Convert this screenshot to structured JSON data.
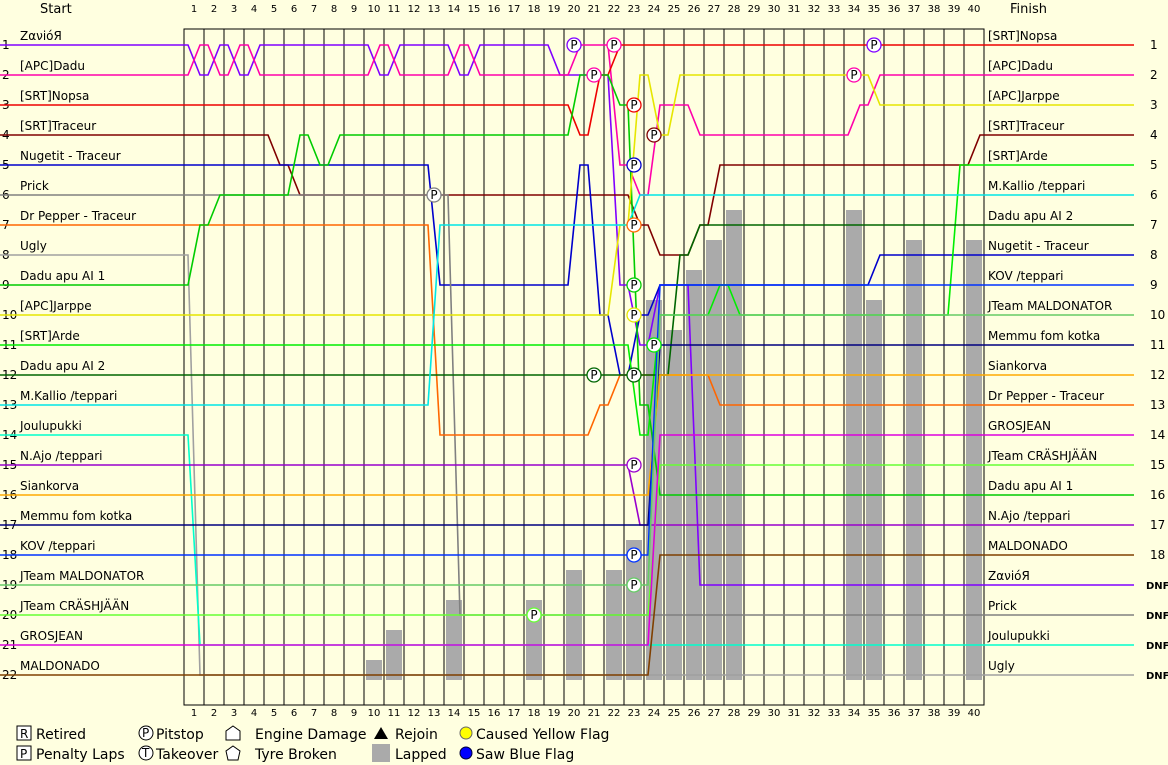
{
  "chart_data": {
    "type": "line",
    "title": "",
    "header": {
      "start_label": "Start",
      "finish_label": "Finish"
    },
    "laps": [
      1,
      2,
      3,
      4,
      5,
      6,
      7,
      8,
      9,
      10,
      11,
      12,
      13,
      14,
      15,
      16,
      17,
      18,
      19,
      20,
      21,
      22,
      23,
      24,
      25,
      26,
      27,
      28,
      29,
      30,
      31,
      32,
      33,
      34,
      35,
      36,
      37,
      38,
      39,
      40
    ],
    "positions": [
      "1",
      "2",
      "3",
      "4",
      "5",
      "6",
      "7",
      "8",
      "9",
      "10",
      "11",
      "12",
      "13",
      "14",
      "15",
      "16",
      "17",
      "18",
      "19",
      "20",
      "21",
      "22"
    ],
    "finish_markers": [
      "1",
      "2",
      "3",
      "4",
      "5",
      "6",
      "7",
      "8",
      "9",
      "10",
      "11",
      "12",
      "13",
      "14",
      "15",
      "16",
      "17",
      "18",
      "DNF",
      "DNF",
      "DNF",
      "DNF"
    ],
    "start_order": [
      "ZανióЯ",
      "[APC]Dadu",
      "[SRT]Nopsa",
      "[SRT]Traceur",
      "Nugetit - Traceur",
      "Prick",
      "Dr Pepper - Traceur",
      "Ugly",
      "Dadu apu AI 1",
      "[APC]Jarppe",
      "[SRT]Arde",
      "Dadu apu AI 2",
      "M.Kallio /teppari",
      "Joulupukki",
      "N.Ajo /teppari",
      "Siankorva",
      "Memmu fom kotka",
      "KOV /teppari",
      "JTeam MALDONATOR",
      "JTeam CRÄSHJÄÄN",
      "GROSJEAN",
      "MALDONADO"
    ],
    "finish_order": [
      "[SRT]Nopsa",
      "[APC]Dadu",
      "[APC]Jarppe",
      "[SRT]Traceur",
      "[SRT]Arde",
      "M.Kallio /teppari",
      "Dadu apu AI 2",
      "Nugetit - Traceur",
      "KOV /teppari",
      "JTeam MALDONATOR",
      "Memmu fom kotka",
      "Siankorva",
      "Dr Pepper - Traceur",
      "GROSJEAN",
      "JTeam CRÄSHJÄÄN",
      "Dadu apu AI 1",
      "N.Ajo /teppari",
      "MALDONADO",
      "ZανióЯ",
      "Prick",
      "Joulupukki",
      "Ugly"
    ],
    "series": [
      {
        "name": "ZανióЯ",
        "color": "#8000ff",
        "pos": [
          1,
          2,
          1,
          2,
          1,
          1,
          1,
          1,
          1,
          1,
          2,
          1,
          1,
          1,
          2,
          1,
          1,
          1,
          1,
          2,
          2,
          2,
          9,
          11,
          9,
          9,
          19,
          19,
          19,
          19,
          19,
          19,
          19,
          19,
          19,
          19,
          19,
          19,
          19,
          19,
          19
        ]
      },
      {
        "name": "[APC]Dadu",
        "color": "#ff00aa",
        "pos": [
          2,
          1,
          2,
          1,
          2,
          2,
          2,
          2,
          2,
          2,
          1,
          2,
          2,
          2,
          1,
          2,
          2,
          2,
          2,
          2,
          1,
          1,
          5,
          6,
          3,
          3,
          4,
          4,
          4,
          4,
          4,
          4,
          4,
          4,
          3,
          2,
          2,
          2,
          2,
          2,
          2
        ]
      },
      {
        "name": "[SRT]Nopsa",
        "color": "#ee0000",
        "pos": [
          3,
          3,
          3,
          3,
          3,
          3,
          3,
          3,
          3,
          3,
          3,
          3,
          3,
          3,
          3,
          3,
          3,
          3,
          3,
          3,
          4,
          2,
          1,
          1,
          1,
          1,
          1,
          1,
          1,
          1,
          1,
          1,
          1,
          1,
          1,
          1,
          1,
          1,
          1,
          1,
          1
        ]
      },
      {
        "name": "[SRT]Traceur",
        "color": "#800000",
        "pos": [
          4,
          4,
          4,
          4,
          4,
          5,
          6,
          6,
          6,
          6,
          6,
          6,
          6,
          6,
          6,
          6,
          6,
          6,
          6,
          6,
          6,
          6,
          6,
          7,
          8,
          8,
          7,
          5,
          5,
          5,
          5,
          5,
          5,
          5,
          5,
          5,
          5,
          5,
          5,
          5,
          4
        ]
      },
      {
        "name": "Nugetit - Traceur",
        "color": "#0000cc",
        "pos": [
          5,
          5,
          5,
          5,
          5,
          5,
          5,
          5,
          5,
          5,
          5,
          5,
          5,
          9,
          9,
          9,
          9,
          9,
          9,
          9,
          5,
          10,
          12,
          10,
          9,
          9,
          9,
          9,
          9,
          9,
          9,
          9,
          9,
          9,
          9,
          8,
          8,
          8,
          8,
          8,
          8
        ]
      },
      {
        "name": "Prick",
        "color": "#808080",
        "pos": [
          6,
          6,
          6,
          6,
          6,
          6,
          6,
          6,
          6,
          6,
          6,
          6,
          6,
          6,
          20,
          20,
          20,
          20,
          20,
          20,
          20,
          20,
          20,
          20,
          20,
          20,
          20,
          20,
          20,
          20,
          20,
          20,
          20,
          20,
          20,
          20,
          20,
          20,
          20,
          20,
          20
        ]
      },
      {
        "name": "Dr Pepper - Traceur",
        "color": "#ff6600",
        "pos": [
          7,
          7,
          7,
          7,
          7,
          7,
          7,
          7,
          7,
          7,
          7,
          7,
          7,
          14,
          14,
          14,
          14,
          14,
          14,
          14,
          14,
          13,
          12,
          12,
          12,
          12,
          12,
          13,
          13,
          13,
          13,
          13,
          13,
          13,
          13,
          13,
          13,
          13,
          13,
          13,
          13
        ]
      },
      {
        "name": "Ugly",
        "color": "#a0a0a0",
        "pos": [
          8,
          22,
          22,
          22,
          22,
          22,
          22,
          22,
          22,
          22,
          22,
          22,
          22,
          22,
          22,
          22,
          22,
          22,
          22,
          22,
          22,
          22,
          22,
          22,
          22,
          22,
          22,
          22,
          22,
          22,
          22,
          22,
          22,
          22,
          22,
          22,
          22,
          22,
          22,
          22,
          22
        ]
      },
      {
        "name": "Dadu apu AI 1",
        "color": "#00cc00",
        "pos": [
          9,
          7,
          6,
          6,
          6,
          6,
          4,
          5,
          4,
          4,
          4,
          4,
          4,
          4,
          4,
          4,
          4,
          4,
          4,
          4,
          2,
          2,
          3,
          13,
          16,
          16,
          16,
          16,
          16,
          16,
          16,
          16,
          16,
          16,
          16,
          16,
          16,
          16,
          16,
          16,
          16
        ]
      },
      {
        "name": "[APC]Jarppe",
        "color": "#e6e600",
        "pos": [
          10,
          10,
          10,
          10,
          10,
          10,
          10,
          10,
          10,
          10,
          10,
          10,
          10,
          10,
          10,
          10,
          10,
          10,
          10,
          10,
          10,
          10,
          7,
          2,
          4,
          2,
          2,
          2,
          2,
          2,
          2,
          2,
          2,
          2,
          2,
          3,
          3,
          3,
          3,
          3,
          3
        ]
      },
      {
        "name": "[SRT]Arde",
        "color": "#00ee00",
        "pos": [
          11,
          11,
          11,
          11,
          11,
          11,
          11,
          11,
          11,
          11,
          11,
          11,
          11,
          11,
          11,
          11,
          11,
          11,
          11,
          11,
          11,
          11,
          11,
          14,
          10,
          10,
          10,
          9,
          10,
          10,
          10,
          10,
          10,
          10,
          10,
          10,
          10,
          10,
          10,
          5,
          5
        ]
      },
      {
        "name": "Dadu apu AI 2",
        "color": "#006600",
        "pos": [
          12,
          12,
          12,
          12,
          12,
          12,
          12,
          12,
          12,
          12,
          12,
          12,
          12,
          12,
          12,
          12,
          12,
          12,
          12,
          12,
          12,
          12,
          12,
          12,
          12,
          8,
          7,
          7,
          7,
          7,
          7,
          7,
          7,
          7,
          7,
          7,
          7,
          7,
          7,
          7,
          7
        ]
      },
      {
        "name": "M.Kallio /teppari",
        "color": "#00e6e6",
        "pos": [
          13,
          13,
          13,
          13,
          13,
          13,
          13,
          13,
          13,
          13,
          13,
          13,
          13,
          7,
          7,
          7,
          7,
          7,
          7,
          7,
          7,
          7,
          7,
          6,
          6,
          6,
          6,
          6,
          6,
          6,
          6,
          6,
          6,
          6,
          6,
          6,
          6,
          6,
          6,
          6,
          6
        ]
      },
      {
        "name": "Joulupukki",
        "color": "#00ffcc",
        "pos": [
          14,
          21,
          21,
          21,
          21,
          21,
          21,
          21,
          21,
          21,
          21,
          21,
          21,
          21,
          21,
          21,
          21,
          21,
          21,
          21,
          21,
          21,
          21,
          21,
          21,
          21,
          21,
          21,
          21,
          21,
          21,
          21,
          21,
          21,
          21,
          21,
          21,
          21,
          21,
          21,
          21
        ]
      },
      {
        "name": "N.Ajo /teppari",
        "color": "#9900cc",
        "pos": [
          15,
          15,
          15,
          15,
          15,
          15,
          15,
          15,
          15,
          15,
          15,
          15,
          15,
          15,
          15,
          15,
          15,
          15,
          15,
          15,
          15,
          15,
          15,
          17,
          17,
          17,
          17,
          17,
          17,
          17,
          17,
          17,
          17,
          17,
          17,
          17,
          17,
          17,
          17,
          17,
          17
        ]
      },
      {
        "name": "Siankorva",
        "color": "#ffaa00",
        "pos": [
          16,
          16,
          16,
          16,
          16,
          16,
          16,
          16,
          16,
          16,
          16,
          16,
          16,
          16,
          16,
          16,
          16,
          16,
          16,
          16,
          16,
          16,
          16,
          16,
          12,
          12,
          12,
          12,
          12,
          12,
          12,
          12,
          12,
          12,
          12,
          12,
          12,
          12,
          12,
          12,
          12
        ]
      },
      {
        "name": "Memmu fom kotka",
        "color": "#000080",
        "pos": [
          17,
          17,
          17,
          17,
          17,
          17,
          17,
          17,
          17,
          17,
          17,
          17,
          17,
          17,
          17,
          17,
          17,
          17,
          17,
          17,
          17,
          17,
          17,
          17,
          11,
          11,
          11,
          11,
          11,
          11,
          11,
          11,
          11,
          11,
          11,
          11,
          11,
          11,
          11,
          11,
          11
        ]
      },
      {
        "name": "KOV /teppari",
        "color": "#0033ff",
        "pos": [
          18,
          18,
          18,
          18,
          18,
          18,
          18,
          18,
          18,
          18,
          18,
          18,
          18,
          18,
          18,
          18,
          18,
          18,
          18,
          18,
          18,
          18,
          18,
          18,
          9,
          9,
          9,
          9,
          9,
          9,
          9,
          9,
          9,
          9,
          9,
          9,
          9,
          9,
          9,
          9,
          9
        ]
      },
      {
        "name": "JTeam MALDONATOR",
        "color": "#66cc66",
        "pos": [
          19,
          19,
          19,
          19,
          19,
          19,
          19,
          19,
          19,
          19,
          19,
          19,
          19,
          19,
          19,
          19,
          19,
          19,
          19,
          19,
          19,
          19,
          19,
          19,
          10,
          10,
          10,
          10,
          10,
          10,
          10,
          10,
          10,
          10,
          10,
          10,
          10,
          10,
          10,
          10,
          10
        ]
      },
      {
        "name": "JTeam CRÄSHJÄÄN",
        "color": "#66ff33",
        "pos": [
          20,
          20,
          20,
          20,
          20,
          20,
          20,
          20,
          20,
          20,
          20,
          20,
          20,
          20,
          20,
          20,
          20,
          20,
          20,
          20,
          20,
          20,
          20,
          20,
          15,
          15,
          15,
          15,
          15,
          15,
          15,
          15,
          15,
          15,
          15,
          15,
          15,
          15,
          15,
          15,
          15
        ]
      },
      {
        "name": "GROSJEAN",
        "color": "#dd00dd",
        "pos": [
          21,
          21,
          21,
          21,
          21,
          21,
          21,
          21,
          21,
          21,
          21,
          21,
          21,
          21,
          21,
          21,
          21,
          21,
          21,
          21,
          21,
          21,
          21,
          21,
          14,
          14,
          14,
          14,
          14,
          14,
          14,
          14,
          14,
          14,
          14,
          14,
          14,
          14,
          14,
          14,
          14
        ]
      },
      {
        "name": "MALDONADO",
        "color": "#804000",
        "pos": [
          22,
          22,
          22,
          22,
          22,
          22,
          22,
          22,
          22,
          22,
          22,
          22,
          22,
          22,
          22,
          22,
          22,
          22,
          22,
          22,
          22,
          22,
          22,
          22,
          18,
          18,
          18,
          18,
          18,
          18,
          18,
          18,
          18,
          18,
          18,
          18,
          18,
          18,
          18,
          18,
          18
        ]
      }
    ],
    "pitstops": [
      [
        1,
        20,
        1
      ],
      [
        2,
        21,
        2
      ],
      [
        2,
        22,
        1
      ],
      [
        3,
        23,
        3
      ],
      [
        4,
        24,
        4
      ],
      [
        5,
        23,
        5
      ],
      [
        6,
        13,
        6
      ],
      [
        7,
        23,
        7
      ],
      [
        9,
        23,
        9
      ],
      [
        10,
        23,
        10
      ],
      [
        11,
        24,
        11
      ],
      [
        12,
        21,
        12
      ],
      [
        12,
        23,
        12
      ],
      [
        15,
        23,
        15
      ],
      [
        18,
        23,
        18
      ],
      [
        19,
        23,
        19
      ],
      [
        20,
        18,
        20
      ],
      [
        1,
        35,
        1
      ],
      [
        2,
        34,
        2
      ]
    ],
    "lapped": [
      [
        10,
        22
      ],
      [
        11,
        21
      ],
      [
        14,
        20
      ],
      [
        18,
        20
      ],
      [
        20,
        19
      ],
      [
        22,
        19
      ],
      [
        23,
        18
      ],
      [
        24,
        10
      ],
      [
        25,
        11
      ],
      [
        26,
        9
      ],
      [
        27,
        8
      ],
      [
        28,
        7
      ],
      [
        34,
        7
      ],
      [
        35,
        10
      ],
      [
        37,
        8
      ],
      [
        40,
        8
      ]
    ],
    "legend": {
      "retired": "Retired",
      "penalty": "Penalty Laps",
      "pitstop": "Pitstop",
      "takeover": "Takeover",
      "engine": "Engine Damage",
      "tyre": "Tyre Broken",
      "rejoin": "Rejoin",
      "lapped": "Lapped",
      "yellow": "Caused Yellow Flag",
      "blue": "Saw Blue Flag"
    }
  }
}
